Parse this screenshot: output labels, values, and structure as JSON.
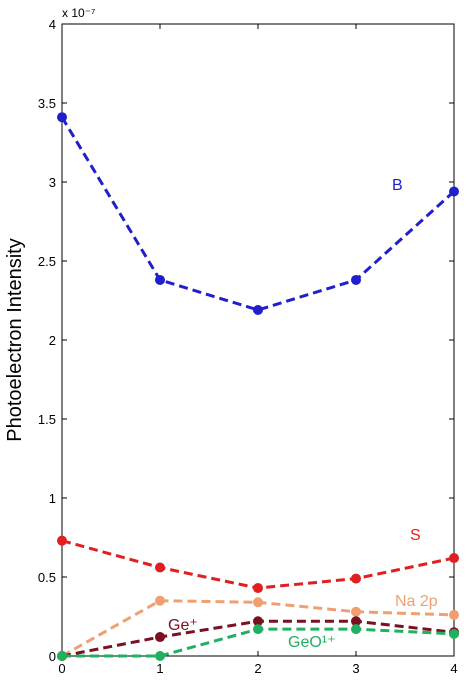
{
  "chart_data": {
    "type": "line",
    "ylabel": "Photoelectron Intensity",
    "y_scale_label": "x 10⁻⁷",
    "x": [
      0,
      1,
      2,
      3,
      4
    ],
    "xticks": [
      "0",
      "1",
      "2",
      "3",
      "4"
    ],
    "yticks": [
      "0",
      "0.5",
      "1",
      "1.5",
      "2",
      "2.5",
      "3",
      "3.5",
      "4"
    ],
    "xlim": [
      0,
      4
    ],
    "ylim": [
      0,
      4
    ],
    "grid": false,
    "series": [
      {
        "name": "B",
        "color": "#1f1fcc",
        "values": [
          3.41,
          2.38,
          2.19,
          2.38,
          2.94
        ]
      },
      {
        "name": "S",
        "color": "#e02020",
        "values": [
          0.73,
          0.56,
          0.43,
          0.49,
          0.62
        ]
      },
      {
        "name": "Na 2p",
        "color": "#f0a070",
        "values": [
          0.0,
          0.35,
          0.34,
          0.28,
          0.26
        ]
      },
      {
        "name": "Ge⁺",
        "color": "#7a1020",
        "values": [
          0.0,
          0.12,
          0.22,
          0.22,
          0.15
        ]
      },
      {
        "name": "GeO¹⁺",
        "color": "#20b060",
        "values": [
          0.0,
          0.0,
          0.17,
          0.17,
          0.14
        ]
      }
    ]
  }
}
